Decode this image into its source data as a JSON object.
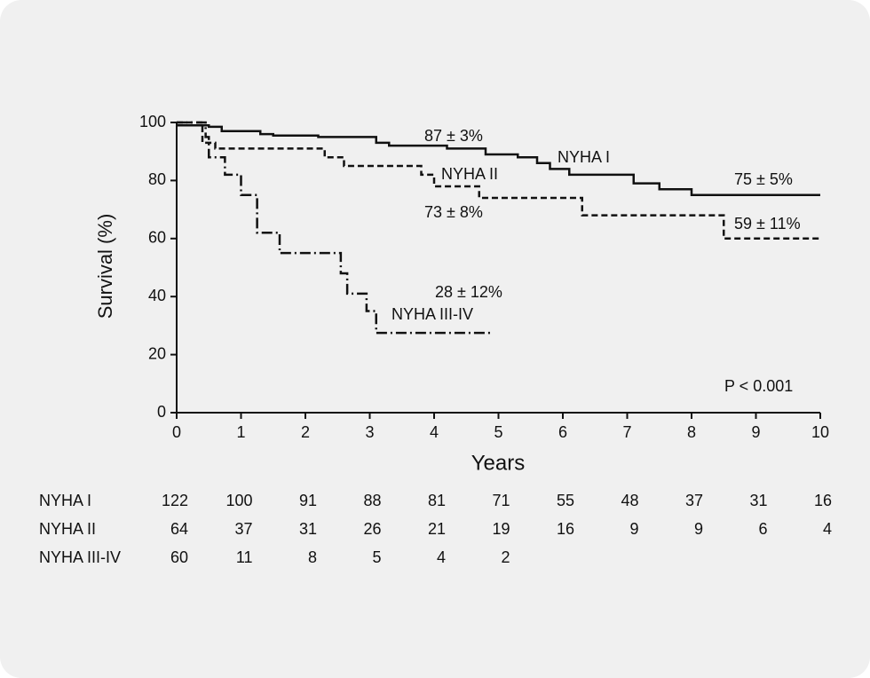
{
  "chart_data": {
    "type": "step",
    "ylabel": "Survival (%)",
    "xlabel": "Years",
    "xlim": [
      0,
      10
    ],
    "xticks": [
      0,
      1,
      2,
      3,
      4,
      5,
      6,
      7,
      8,
      9,
      10
    ],
    "ylim": [
      0,
      100
    ],
    "yticks": [
      0,
      20,
      40,
      60,
      80,
      100
    ],
    "series": [
      {
        "name": "NYHA I",
        "color": "#111111",
        "dash": "none",
        "x": [
          0,
          0.5,
          0.7,
          1.3,
          1.5,
          2.2,
          3.1,
          3.3,
          4.2,
          4.8,
          5.3,
          5.6,
          5.8,
          6.1,
          7.1,
          7.5,
          8.0,
          10
        ],
        "values": [
          99,
          98.5,
          97,
          96,
          95.5,
          95,
          93,
          92,
          91,
          89,
          88,
          86,
          84,
          82,
          79,
          77,
          75,
          75
        ]
      },
      {
        "name": "NYHA II",
        "color": "#111111",
        "dash": "7,4",
        "x": [
          0,
          0.4,
          0.6,
          2.3,
          2.6,
          3.8,
          4.0,
          4.7,
          6.3,
          8.5,
          10
        ],
        "values": [
          100,
          93,
          91,
          88,
          85,
          82,
          78,
          74,
          68,
          60,
          60
        ]
      },
      {
        "name": "NYHA III-IV",
        "color": "#111111",
        "dash": "12,4,2,4",
        "x": [
          0,
          0.45,
          0.5,
          0.75,
          1.0,
          1.25,
          1.6,
          2.55,
          2.65,
          2.95,
          3.1,
          4.9
        ],
        "values": [
          100,
          95,
          88,
          82,
          75,
          62,
          55,
          48,
          41,
          35,
          27.5,
          27.5
        ]
      }
    ],
    "annotations": [
      "87 ± 3%",
      "75 ± 5%",
      "73 ± 8%",
      "59 ± 11%",
      "28 ± 12%",
      "P < 0.001"
    ],
    "at_risk": [
      {
        "label": "NYHA I",
        "values": [
          122,
          100,
          91,
          88,
          81,
          71,
          55,
          48,
          37,
          31,
          16
        ]
      },
      {
        "label": "NYHA II",
        "values": [
          64,
          37,
          31,
          26,
          21,
          19,
          16,
          9,
          9,
          6,
          4
        ]
      },
      {
        "label": "NYHA III-IV",
        "values": [
          60,
          11,
          8,
          5,
          4,
          2
        ]
      }
    ]
  }
}
